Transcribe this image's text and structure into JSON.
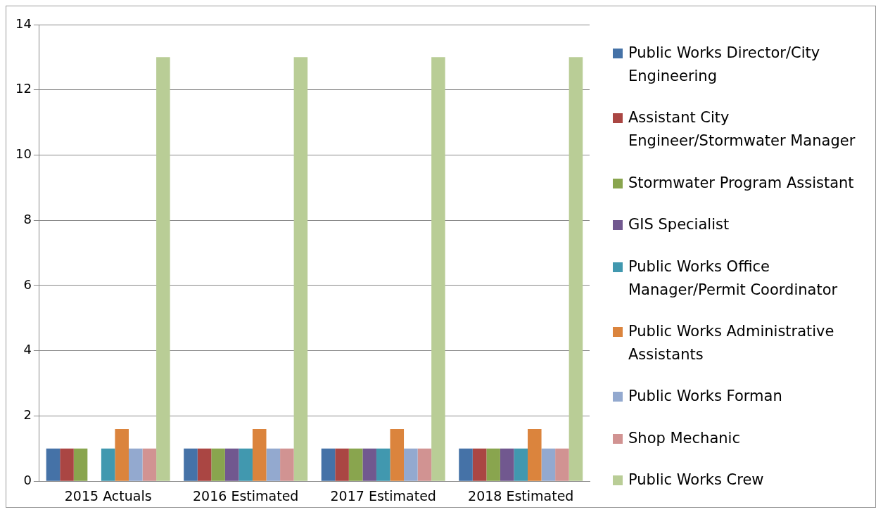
{
  "chart_data": {
    "type": "bar",
    "categories": [
      "2015 Actuals",
      "2016 Estimated",
      "2017 Estimated",
      "2018 Estimated"
    ],
    "series": [
      {
        "name": "Public Works Director/City Engineering",
        "color": "#4572a7",
        "values": [
          1,
          1,
          1,
          1
        ]
      },
      {
        "name": "Assistant City Engineer/Stormwater Manager",
        "color": "#aa4643",
        "values": [
          1,
          1,
          1,
          1
        ]
      },
      {
        "name": "Stormwater Program Assistant",
        "color": "#89a54e",
        "values": [
          1,
          1,
          1,
          1
        ]
      },
      {
        "name": "GIS Specialist",
        "color": "#71588f",
        "values": [
          0,
          1,
          1,
          1
        ]
      },
      {
        "name": "Public Works Office Manager/Permit Coordinator",
        "color": "#4198af",
        "values": [
          1,
          1,
          1,
          1
        ]
      },
      {
        "name": "Public Works Administrative Assistants",
        "color": "#db843d",
        "values": [
          1.6,
          1.6,
          1.6,
          1.6
        ]
      },
      {
        "name": "Public Works Forman",
        "color": "#93a9cf",
        "values": [
          1,
          1,
          1,
          1
        ]
      },
      {
        "name": "Shop Mechanic",
        "color": "#d19392",
        "values": [
          1,
          1,
          1,
          1
        ]
      },
      {
        "name": "Public Works Crew",
        "color": "#b9cd96",
        "values": [
          13,
          13,
          13,
          13
        ]
      }
    ],
    "ylim": [
      0,
      14
    ],
    "yticks": [
      0,
      2,
      4,
      6,
      8,
      10,
      12,
      14
    ],
    "grid": "y",
    "legend": "right"
  }
}
